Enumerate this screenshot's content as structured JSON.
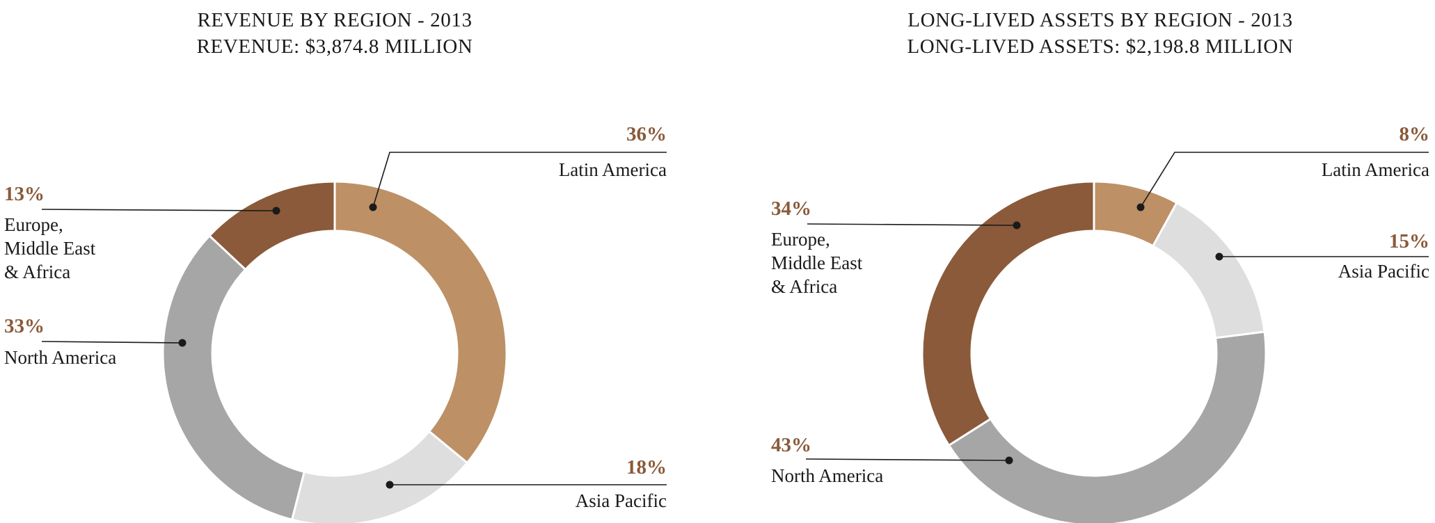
{
  "page": {
    "background": "#ffffff",
    "text_color": "#1a1a1a",
    "accent_brown": "#8a5a3a"
  },
  "chart_data": [
    {
      "type": "pie",
      "variant": "donut",
      "title": "REVENUE BY REGION - 2013",
      "subtitle": "REVENUE: $3,874.8 MILLION",
      "unit": "percent",
      "categories": [
        "Latin America",
        "Asia Pacific",
        "North America",
        "Europe, Middle East & Africa"
      ],
      "values": [
        36,
        18,
        33,
        13
      ],
      "colors": [
        "#bd9066",
        "#dedede",
        "#a6a6a6",
        "#8a5a3a"
      ],
      "start_angle_deg": 0,
      "direction": "clockwise",
      "legend_position": "callout-labels",
      "labels": [
        {
          "pct": "36%",
          "name": "Latin America"
        },
        {
          "pct": "18%",
          "name": "Asia Pacific"
        },
        {
          "pct": "33%",
          "name": "North America"
        },
        {
          "pct": "13%",
          "name": "Europe,\nMiddle East\n& Africa"
        }
      ]
    },
    {
      "type": "pie",
      "variant": "donut",
      "title": "LONG-LIVED ASSETS BY REGION - 2013",
      "subtitle": "LONG-LIVED ASSETS: $2,198.8 MILLION",
      "unit": "percent",
      "categories": [
        "Latin America",
        "Asia Pacific",
        "North America",
        "Europe, Middle East & Africa"
      ],
      "values": [
        8,
        15,
        43,
        34
      ],
      "colors": [
        "#bd9066",
        "#dedede",
        "#a6a6a6",
        "#8a5a3a"
      ],
      "start_angle_deg": 0,
      "direction": "clockwise",
      "legend_position": "callout-labels",
      "labels": [
        {
          "pct": "8%",
          "name": "Latin America"
        },
        {
          "pct": "15%",
          "name": "Asia Pacific"
        },
        {
          "pct": "43%",
          "name": "North America"
        },
        {
          "pct": "34%",
          "name": "Europe,\nMiddle East\n& Africa"
        }
      ]
    }
  ]
}
